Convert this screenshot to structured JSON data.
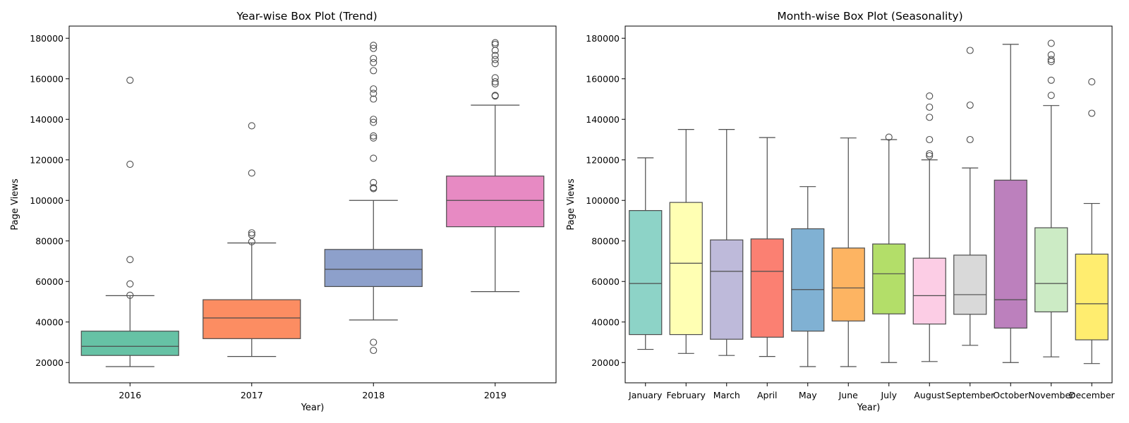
{
  "chart_data": [
    {
      "type": "box",
      "title": "Year-wise Box Plot (Trend)",
      "xlabel": "Year)",
      "ylabel": "Page Views",
      "ylim": [
        10000,
        186000
      ],
      "yticks": [
        20000,
        40000,
        60000,
        80000,
        100000,
        120000,
        140000,
        160000,
        180000
      ],
      "ytick_labels": [
        "20000",
        "40000",
        "60000",
        "80000",
        "100000",
        "120000",
        "140000",
        "160000",
        "180000"
      ],
      "grid": false,
      "categories": [
        "2016",
        "2017",
        "2018",
        "2019"
      ],
      "boxes": [
        {
          "min": 18000,
          "q1": 23500,
          "median": 28000,
          "q3": 35500,
          "max": 53000,
          "fliers": [
            53200,
            58800,
            70800,
            117800,
            159300
          ],
          "color": "#66c2a5"
        },
        {
          "min": 23000,
          "q1": 31800,
          "median": 42000,
          "q3": 51000,
          "max": 79000,
          "fliers": [
            79600,
            83000,
            84000,
            113500,
            136800
          ],
          "color": "#fc8d62"
        },
        {
          "min": 41000,
          "q1": 57500,
          "median": 66000,
          "q3": 75800,
          "max": 100000,
          "fliers": [
            26000,
            30000,
            105800,
            106300,
            108800,
            120800,
            130800,
            131800,
            138500,
            140000,
            150000,
            152800,
            155000,
            164000,
            168000,
            170000,
            175000,
            176500
          ],
          "color": "#8da0cb"
        },
        {
          "min": 55000,
          "q1": 87000,
          "median": 100000,
          "q3": 112000,
          "max": 147000,
          "fliers": [
            151500,
            151800,
            157500,
            158500,
            160500,
            167500,
            169500,
            171500,
            174000,
            177000,
            177800
          ],
          "color": "#e78ac3"
        }
      ]
    },
    {
      "type": "box",
      "title": "Month-wise Box Plot (Seasonality)",
      "xlabel": "Year)",
      "ylabel": "Page Views",
      "ylim": [
        10000,
        186000
      ],
      "yticks": [
        20000,
        40000,
        60000,
        80000,
        100000,
        120000,
        140000,
        160000,
        180000
      ],
      "ytick_labels": [
        "20000",
        "40000",
        "60000",
        "80000",
        "100000",
        "120000",
        "140000",
        "160000",
        "180000"
      ],
      "grid": false,
      "categories": [
        "January",
        "February",
        "March",
        "April",
        "May",
        "June",
        "July",
        "August",
        "September",
        "October",
        "November",
        "December"
      ],
      "boxes": [
        {
          "min": 26500,
          "q1": 33800,
          "median": 59000,
          "q3": 95000,
          "max": 121000,
          "fliers": [],
          "color": "#8dd3c7"
        },
        {
          "min": 24500,
          "q1": 33800,
          "median": 69000,
          "q3": 99000,
          "max": 135000,
          "fliers": [],
          "color": "#ffffb3"
        },
        {
          "min": 23500,
          "q1": 31500,
          "median": 65000,
          "q3": 80500,
          "max": 135000,
          "fliers": [],
          "color": "#bebada"
        },
        {
          "min": 23000,
          "q1": 32500,
          "median": 65000,
          "q3": 81000,
          "max": 131000,
          "fliers": [],
          "color": "#fb8072"
        },
        {
          "min": 18000,
          "q1": 35500,
          "median": 56000,
          "q3": 86000,
          "max": 106800,
          "fliers": [],
          "color": "#80b1d3"
        },
        {
          "min": 18000,
          "q1": 40500,
          "median": 56800,
          "q3": 76500,
          "max": 130800,
          "fliers": [],
          "color": "#fdb462"
        },
        {
          "min": 20000,
          "q1": 44000,
          "median": 63800,
          "q3": 78500,
          "max": 130000,
          "fliers": [
            131200
          ],
          "color": "#b3de69"
        },
        {
          "min": 20500,
          "q1": 39000,
          "median": 53000,
          "q3": 71500,
          "max": 120000,
          "fliers": [
            122000,
            123000,
            130000,
            141000,
            146000,
            151500
          ],
          "color": "#fccde5"
        },
        {
          "min": 28500,
          "q1": 43800,
          "median": 53500,
          "q3": 73000,
          "max": 116000,
          "fliers": [
            130000,
            147000,
            174000
          ],
          "color": "#d9d9d9"
        },
        {
          "min": 20000,
          "q1": 37000,
          "median": 51000,
          "q3": 110000,
          "max": 177000,
          "fliers": [],
          "color": "#bc80bd"
        },
        {
          "min": 22800,
          "q1": 45000,
          "median": 59000,
          "q3": 86500,
          "max": 146800,
          "fliers": [
            151800,
            159300,
            168500,
            169500,
            171800,
            177500
          ],
          "color": "#ccebc5"
        },
        {
          "min": 19500,
          "q1": 31200,
          "median": 49000,
          "q3": 73500,
          "max": 98500,
          "fliers": [
            143000,
            158500
          ],
          "color": "#ffed6f"
        }
      ]
    }
  ]
}
